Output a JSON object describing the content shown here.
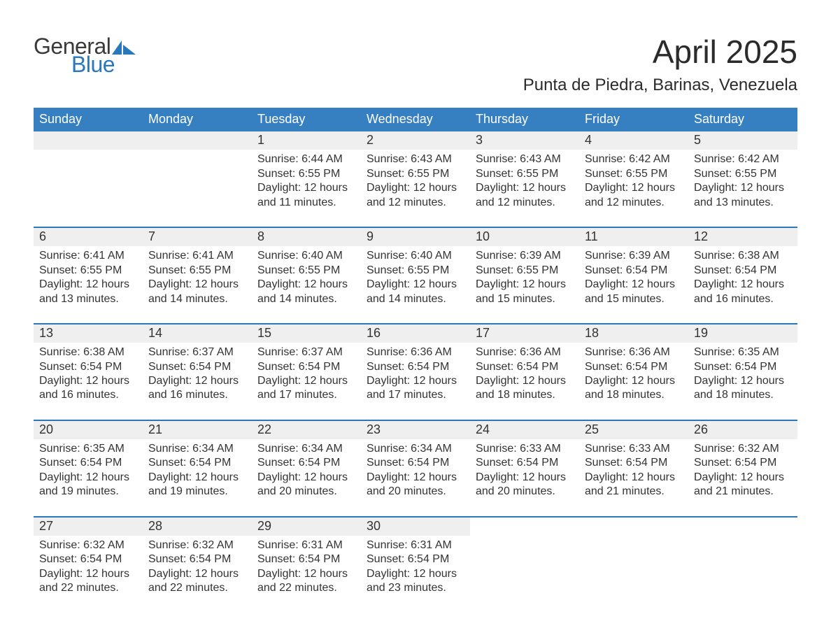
{
  "brand": {
    "word1": "General",
    "word2": "Blue",
    "word1_color": "#3a3a3a",
    "word2_color": "#2a77bb",
    "mark_color": "#2a77bb"
  },
  "title": {
    "month": "April 2025",
    "location": "Punta de Piedra, Barinas, Venezuela"
  },
  "colors": {
    "header_bg": "#3680c2",
    "header_text": "#ffffff",
    "daynum_bg": "#efefef",
    "rule": "#2a77bb",
    "text": "#333333",
    "background": "#ffffff"
  },
  "fonts": {
    "month_title_size_pt": 34,
    "location_size_pt": 18,
    "header_size_pt": 14,
    "body_size_pt": 12
  },
  "calendar": {
    "day_names": [
      "Sunday",
      "Monday",
      "Tuesday",
      "Wednesday",
      "Thursday",
      "Friday",
      "Saturday"
    ],
    "weeks": [
      [
        {
          "blank": true
        },
        {
          "blank": true
        },
        {
          "day": "1",
          "sunrise": "Sunrise: 6:44 AM",
          "sunset": "Sunset: 6:55 PM",
          "daylight1": "Daylight: 12 hours",
          "daylight2": "and 11 minutes."
        },
        {
          "day": "2",
          "sunrise": "Sunrise: 6:43 AM",
          "sunset": "Sunset: 6:55 PM",
          "daylight1": "Daylight: 12 hours",
          "daylight2": "and 12 minutes."
        },
        {
          "day": "3",
          "sunrise": "Sunrise: 6:43 AM",
          "sunset": "Sunset: 6:55 PM",
          "daylight1": "Daylight: 12 hours",
          "daylight2": "and 12 minutes."
        },
        {
          "day": "4",
          "sunrise": "Sunrise: 6:42 AM",
          "sunset": "Sunset: 6:55 PM",
          "daylight1": "Daylight: 12 hours",
          "daylight2": "and 12 minutes."
        },
        {
          "day": "5",
          "sunrise": "Sunrise: 6:42 AM",
          "sunset": "Sunset: 6:55 PM",
          "daylight1": "Daylight: 12 hours",
          "daylight2": "and 13 minutes."
        }
      ],
      [
        {
          "day": "6",
          "sunrise": "Sunrise: 6:41 AM",
          "sunset": "Sunset: 6:55 PM",
          "daylight1": "Daylight: 12 hours",
          "daylight2": "and 13 minutes."
        },
        {
          "day": "7",
          "sunrise": "Sunrise: 6:41 AM",
          "sunset": "Sunset: 6:55 PM",
          "daylight1": "Daylight: 12 hours",
          "daylight2": "and 14 minutes."
        },
        {
          "day": "8",
          "sunrise": "Sunrise: 6:40 AM",
          "sunset": "Sunset: 6:55 PM",
          "daylight1": "Daylight: 12 hours",
          "daylight2": "and 14 minutes."
        },
        {
          "day": "9",
          "sunrise": "Sunrise: 6:40 AM",
          "sunset": "Sunset: 6:55 PM",
          "daylight1": "Daylight: 12 hours",
          "daylight2": "and 14 minutes."
        },
        {
          "day": "10",
          "sunrise": "Sunrise: 6:39 AM",
          "sunset": "Sunset: 6:55 PM",
          "daylight1": "Daylight: 12 hours",
          "daylight2": "and 15 minutes."
        },
        {
          "day": "11",
          "sunrise": "Sunrise: 6:39 AM",
          "sunset": "Sunset: 6:54 PM",
          "daylight1": "Daylight: 12 hours",
          "daylight2": "and 15 minutes."
        },
        {
          "day": "12",
          "sunrise": "Sunrise: 6:38 AM",
          "sunset": "Sunset: 6:54 PM",
          "daylight1": "Daylight: 12 hours",
          "daylight2": "and 16 minutes."
        }
      ],
      [
        {
          "day": "13",
          "sunrise": "Sunrise: 6:38 AM",
          "sunset": "Sunset: 6:54 PM",
          "daylight1": "Daylight: 12 hours",
          "daylight2": "and 16 minutes."
        },
        {
          "day": "14",
          "sunrise": "Sunrise: 6:37 AM",
          "sunset": "Sunset: 6:54 PM",
          "daylight1": "Daylight: 12 hours",
          "daylight2": "and 16 minutes."
        },
        {
          "day": "15",
          "sunrise": "Sunrise: 6:37 AM",
          "sunset": "Sunset: 6:54 PM",
          "daylight1": "Daylight: 12 hours",
          "daylight2": "and 17 minutes."
        },
        {
          "day": "16",
          "sunrise": "Sunrise: 6:36 AM",
          "sunset": "Sunset: 6:54 PM",
          "daylight1": "Daylight: 12 hours",
          "daylight2": "and 17 minutes."
        },
        {
          "day": "17",
          "sunrise": "Sunrise: 6:36 AM",
          "sunset": "Sunset: 6:54 PM",
          "daylight1": "Daylight: 12 hours",
          "daylight2": "and 18 minutes."
        },
        {
          "day": "18",
          "sunrise": "Sunrise: 6:36 AM",
          "sunset": "Sunset: 6:54 PM",
          "daylight1": "Daylight: 12 hours",
          "daylight2": "and 18 minutes."
        },
        {
          "day": "19",
          "sunrise": "Sunrise: 6:35 AM",
          "sunset": "Sunset: 6:54 PM",
          "daylight1": "Daylight: 12 hours",
          "daylight2": "and 18 minutes."
        }
      ],
      [
        {
          "day": "20",
          "sunrise": "Sunrise: 6:35 AM",
          "sunset": "Sunset: 6:54 PM",
          "daylight1": "Daylight: 12 hours",
          "daylight2": "and 19 minutes."
        },
        {
          "day": "21",
          "sunrise": "Sunrise: 6:34 AM",
          "sunset": "Sunset: 6:54 PM",
          "daylight1": "Daylight: 12 hours",
          "daylight2": "and 19 minutes."
        },
        {
          "day": "22",
          "sunrise": "Sunrise: 6:34 AM",
          "sunset": "Sunset: 6:54 PM",
          "daylight1": "Daylight: 12 hours",
          "daylight2": "and 20 minutes."
        },
        {
          "day": "23",
          "sunrise": "Sunrise: 6:34 AM",
          "sunset": "Sunset: 6:54 PM",
          "daylight1": "Daylight: 12 hours",
          "daylight2": "and 20 minutes."
        },
        {
          "day": "24",
          "sunrise": "Sunrise: 6:33 AM",
          "sunset": "Sunset: 6:54 PM",
          "daylight1": "Daylight: 12 hours",
          "daylight2": "and 20 minutes."
        },
        {
          "day": "25",
          "sunrise": "Sunrise: 6:33 AM",
          "sunset": "Sunset: 6:54 PM",
          "daylight1": "Daylight: 12 hours",
          "daylight2": "and 21 minutes."
        },
        {
          "day": "26",
          "sunrise": "Sunrise: 6:32 AM",
          "sunset": "Sunset: 6:54 PM",
          "daylight1": "Daylight: 12 hours",
          "daylight2": "and 21 minutes."
        }
      ],
      [
        {
          "day": "27",
          "sunrise": "Sunrise: 6:32 AM",
          "sunset": "Sunset: 6:54 PM",
          "daylight1": "Daylight: 12 hours",
          "daylight2": "and 22 minutes."
        },
        {
          "day": "28",
          "sunrise": "Sunrise: 6:32 AM",
          "sunset": "Sunset: 6:54 PM",
          "daylight1": "Daylight: 12 hours",
          "daylight2": "and 22 minutes."
        },
        {
          "day": "29",
          "sunrise": "Sunrise: 6:31 AM",
          "sunset": "Sunset: 6:54 PM",
          "daylight1": "Daylight: 12 hours",
          "daylight2": "and 22 minutes."
        },
        {
          "day": "30",
          "sunrise": "Sunrise: 6:31 AM",
          "sunset": "Sunset: 6:54 PM",
          "daylight1": "Daylight: 12 hours",
          "daylight2": "and 23 minutes."
        },
        {
          "blank": true
        },
        {
          "blank": true
        },
        {
          "blank": true
        }
      ]
    ]
  }
}
